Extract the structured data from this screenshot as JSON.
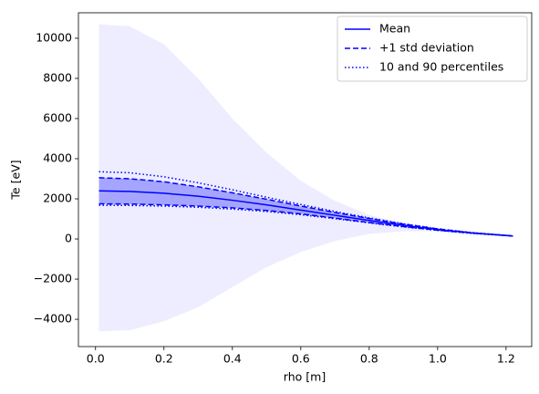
{
  "chart_data": {
    "type": "line",
    "xlabel": "rho [m]",
    "ylabel": "Te [eV]",
    "x": [
      0.01,
      0.1,
      0.2,
      0.3,
      0.4,
      0.5,
      0.6,
      0.7,
      0.8,
      0.9,
      1.0,
      1.1,
      1.22
    ],
    "band": {
      "color": "#0000ff",
      "opacity": 0.07,
      "upper": [
        10700,
        10600,
        9700,
        8000,
        6000,
        4300,
        2900,
        1900,
        1200,
        760,
        480,
        310,
        150
      ],
      "lower": [
        -4600,
        -4550,
        -4100,
        -3400,
        -2400,
        -1400,
        -650,
        -100,
        250,
        380,
        380,
        270,
        150
      ]
    },
    "series": [
      {
        "name": "Mean",
        "color": "#0000ff",
        "style": "solid",
        "values": [
          2400,
          2370,
          2280,
          2130,
          1930,
          1700,
          1440,
          1180,
          920,
          680,
          470,
          300,
          150
        ]
      },
      {
        "name": "+1 std deviation",
        "color": "#0000ff",
        "style": "dashed",
        "fill_opacity": 0.3,
        "values": [
          3050,
          3000,
          2850,
          2600,
          2300,
          1980,
          1640,
          1320,
          1020,
          740,
          500,
          310,
          150
        ],
        "values_low": [
          1750,
          1740,
          1700,
          1640,
          1550,
          1420,
          1250,
          1040,
          820,
          620,
          440,
          290,
          150
        ]
      },
      {
        "name": "10 and 90 percentiles",
        "color": "#0000ff",
        "style": "dotted",
        "values": [
          3350,
          3300,
          3100,
          2800,
          2450,
          2080,
          1720,
          1370,
          1050,
          760,
          510,
          320,
          150
        ],
        "values_low": [
          1680,
          1670,
          1640,
          1580,
          1490,
          1370,
          1210,
          1010,
          800,
          600,
          430,
          280,
          150
        ]
      }
    ],
    "xlim": [
      -0.05,
      1.275
    ],
    "ylim": [
      -5360,
      11270
    ],
    "xticks": [
      {
        "value": 0,
        "label": "0.0"
      },
      0.2,
      0.4,
      0.6,
      0.8,
      {
        "value": 1,
        "label": "1.0"
      },
      1.2
    ],
    "yticks": [
      {
        "value": -4000,
        "label": "−4000"
      },
      {
        "value": -2000,
        "label": "−2000"
      },
      0,
      2000,
      4000,
      6000,
      8000,
      10000
    ],
    "legend": "upper right"
  }
}
